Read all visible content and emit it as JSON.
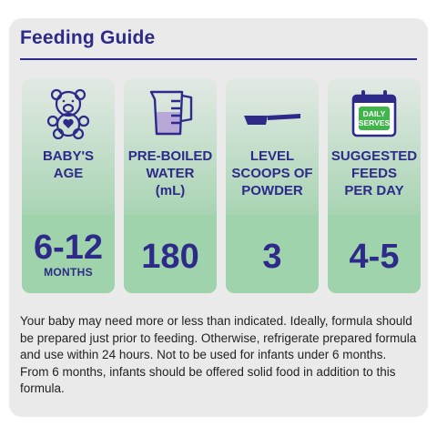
{
  "title": "Feeding Guide",
  "colors": {
    "brand": "#2d2a8a",
    "column_top": "#e2e9e4",
    "column_bottom": "#9fd3ab",
    "card": "#e9eae9"
  },
  "columns": [
    {
      "icon": "teddy-bear-icon",
      "heading": [
        "BABY'S",
        "AGE"
      ],
      "value": "6-12",
      "unit": "MONTHS"
    },
    {
      "icon": "measuring-jug-icon",
      "heading": [
        "PRE-BOILED",
        "WATER",
        "(mL)"
      ],
      "value": "180"
    },
    {
      "icon": "scoop-icon",
      "heading": [
        "LEVEL",
        "SCOOPS OF",
        "POWDER"
      ],
      "value": "3"
    },
    {
      "icon": "calendar-icon",
      "icon_text": [
        "DAILY",
        "SERVES"
      ],
      "heading": [
        "SUGGESTED",
        "FEEDS",
        "PER DAY"
      ],
      "value": "4-5"
    }
  ],
  "note": "Your baby may need more or less than indicated. Ideally, formula should be prepared just prior to feeding. Otherwise, refrigerate prepared formula and use within 24 hours. Not to be used for infants under 6 months. From 6 months, infants should be offered solid food in addition to this formula."
}
